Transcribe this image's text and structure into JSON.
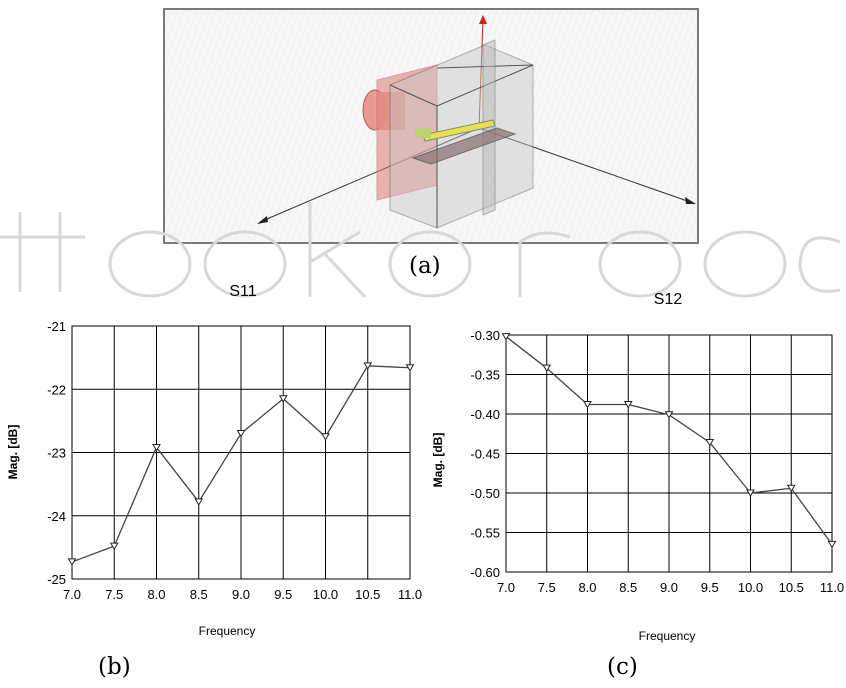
{
  "figure_labels": {
    "a": "(a)",
    "b": "(b)",
    "c": "(c)"
  },
  "colors": {
    "grid": "#000000",
    "line": "#444444",
    "model_red": "#e07070",
    "axis_red": "#cc2222",
    "watermark": "#d8d8d8"
  },
  "chart_data": [
    {
      "type": "line",
      "title": "S11",
      "xlabel": "Frequency",
      "ylabel": "Mag. [dB]",
      "x": [
        7.0,
        7.5,
        8.0,
        8.5,
        9.0,
        9.5,
        10.0,
        10.5,
        11.0
      ],
      "series": [
        {
          "values": [
            -24.73,
            -24.48,
            -22.92,
            -23.78,
            -22.7,
            -22.15,
            -22.75,
            -21.63,
            -21.66
          ]
        }
      ],
      "x_ticks": [
        "7.0",
        "7.5",
        "8.0",
        "8.5",
        "9.0",
        "9.5",
        "10.0",
        "10.5",
        "11.0"
      ],
      "y_ticks": [
        "-21",
        "-22",
        "-23",
        "-24",
        "-25"
      ],
      "xlim": [
        7.0,
        11.0
      ],
      "ylim": [
        -25,
        -21
      ],
      "grid": true,
      "marker": "down-triangle"
    },
    {
      "type": "line",
      "title": "S12",
      "xlabel": "Frequency",
      "ylabel": "Mag. [dB]",
      "x": [
        7.0,
        7.5,
        8.0,
        8.5,
        9.0,
        9.5,
        10.0,
        10.5,
        11.0
      ],
      "series": [
        {
          "values": [
            -0.302,
            -0.342,
            -0.388,
            -0.388,
            -0.401,
            -0.436,
            -0.5,
            -0.494,
            -0.565
          ]
        }
      ],
      "x_ticks": [
        "7.0",
        "7.5",
        "8.0",
        "8.5",
        "9.0",
        "9.5",
        "10.0",
        "10.5",
        "11.0"
      ],
      "y_ticks": [
        "-0.30",
        "-0.35",
        "-0.40",
        "-0.45",
        "-0.50",
        "-0.55",
        "-0.60"
      ],
      "xlim": [
        7.0,
        11.0
      ],
      "ylim": [
        -0.6,
        -0.3
      ],
      "grid": true,
      "marker": "down-triangle"
    }
  ]
}
